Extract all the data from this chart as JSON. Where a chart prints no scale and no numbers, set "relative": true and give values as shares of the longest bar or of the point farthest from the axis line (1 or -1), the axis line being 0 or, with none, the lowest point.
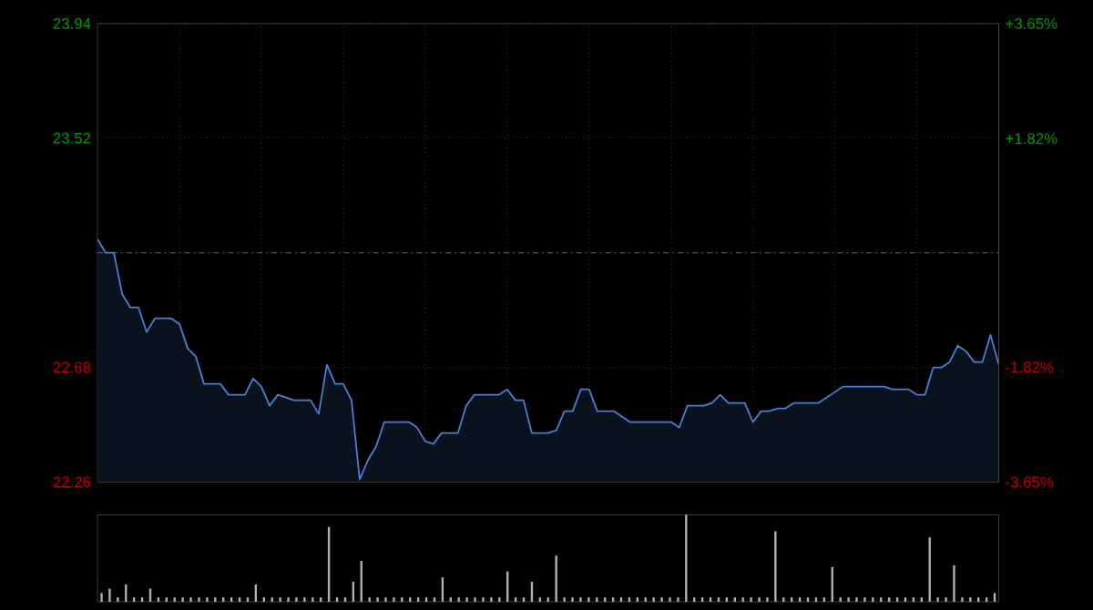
{
  "chart_data": [
    {
      "type": "area",
      "color": "#4a7fd4",
      "categories": [
        null,
        null,
        null,
        null,
        null,
        null,
        null,
        null,
        null,
        null,
        null,
        null,
        null,
        null,
        null,
        null,
        null,
        null,
        null,
        null,
        null,
        null,
        null,
        null,
        null,
        null,
        null,
        null,
        null,
        null,
        null,
        null,
        null,
        null,
        null,
        null,
        null,
        null,
        null,
        null,
        null,
        null,
        null,
        null,
        null,
        null,
        null,
        null,
        null,
        null,
        null,
        null,
        null,
        null,
        null,
        null,
        null,
        null,
        null,
        null,
        null,
        null,
        null,
        null,
        null,
        null,
        null,
        null,
        null,
        null,
        null,
        null,
        null,
        null,
        null,
        null,
        null,
        null,
        null,
        null,
        null,
        null,
        null,
        null,
        null,
        null,
        null,
        null,
        null,
        null,
        null,
        null,
        null,
        null,
        null,
        null,
        null,
        null,
        null,
        null,
        null,
        null,
        null,
        null,
        null,
        null,
        null,
        null,
        null,
        null,
        null
      ],
      "values": [
        23.15,
        23.1,
        23.1,
        22.95,
        22.9,
        22.9,
        22.81,
        22.86,
        22.86,
        22.86,
        22.84,
        22.75,
        22.72,
        22.62,
        22.62,
        22.62,
        22.58,
        22.58,
        22.58,
        22.64,
        22.61,
        22.54,
        22.58,
        22.57,
        22.56,
        22.56,
        22.56,
        22.51,
        22.69,
        22.62,
        22.62,
        22.56,
        22.27,
        22.34,
        22.39,
        22.48,
        22.48,
        22.48,
        22.48,
        22.46,
        22.41,
        22.4,
        22.44,
        22.44,
        22.44,
        22.54,
        22.58,
        22.58,
        22.58,
        22.58,
        22.6,
        22.56,
        22.56,
        22.44,
        22.44,
        22.44,
        22.45,
        22.52,
        22.52,
        22.6,
        22.6,
        22.52,
        22.52,
        22.52,
        22.5,
        22.48,
        22.48,
        22.48,
        22.48,
        22.48,
        22.48,
        22.46,
        22.54,
        22.54,
        22.54,
        22.55,
        22.58,
        22.55,
        22.55,
        22.55,
        22.48,
        22.52,
        22.52,
        22.53,
        22.53,
        22.55,
        22.55,
        22.55,
        22.55,
        22.57,
        22.59,
        22.61,
        22.61,
        22.61,
        22.61,
        22.61,
        22.61,
        22.6,
        22.6,
        22.6,
        22.58,
        22.58,
        22.68,
        22.68,
        22.7,
        22.76,
        22.74,
        22.7,
        22.7,
        22.8,
        22.69
      ],
      "ylim": [
        22.26,
        23.94
      ],
      "yticks": [
        22.26,
        22.68,
        23.52,
        23.94
      ],
      "y2lim": [
        -3.65,
        3.65
      ],
      "y2ticks": [
        {
          "value": -3.65,
          "label": "-3.65%"
        },
        {
          "value": -1.82,
          "label": "-1.82%"
        },
        {
          "value": 1.82,
          "label": "+1.82%"
        },
        {
          "value": 3.65,
          "label": "+3.65%"
        }
      ],
      "ref_lines": [
        {
          "axis": "y",
          "value": 23.1,
          "color": "#888888",
          "line_style": "dashed"
        }
      ],
      "grid": true
    },
    {
      "type": "bar",
      "relative": true,
      "color": "#b0b0b0",
      "categories": [
        null,
        null,
        null,
        null,
        null,
        null,
        null,
        null,
        null,
        null,
        null,
        null,
        null,
        null,
        null,
        null,
        null,
        null,
        null,
        null,
        null,
        null,
        null,
        null,
        null,
        null,
        null,
        null,
        null,
        null,
        null,
        null,
        null,
        null,
        null,
        null,
        null,
        null,
        null,
        null,
        null,
        null,
        null,
        null,
        null,
        null,
        null,
        null,
        null,
        null,
        null,
        null,
        null,
        null,
        null,
        null,
        null,
        null,
        null,
        null,
        null,
        null,
        null,
        null,
        null,
        null,
        null,
        null,
        null,
        null,
        null,
        null,
        null,
        null,
        null,
        null,
        null,
        null,
        null,
        null,
        null,
        null,
        null,
        null,
        null,
        null,
        null,
        null,
        null,
        null,
        null,
        null,
        null,
        null,
        null,
        null,
        null,
        null,
        null,
        null,
        null,
        null,
        null,
        null,
        null,
        null,
        null,
        null,
        null,
        null,
        null
      ],
      "values": [
        0.1,
        0.15,
        0.05,
        0.2,
        0.05,
        0.05,
        0.15,
        0.05,
        0.05,
        0.05,
        0.05,
        0.05,
        0.05,
        0.05,
        0.05,
        0.05,
        0.05,
        0.05,
        0.05,
        0.2,
        0.05,
        0.05,
        0.05,
        0.05,
        0.05,
        0.05,
        0.05,
        0.05,
        0.86,
        0.05,
        0.05,
        0.23,
        0.47,
        0.05,
        0.05,
        0.05,
        0.05,
        0.05,
        0.05,
        0.05,
        0.05,
        0.05,
        0.28,
        0.05,
        0.05,
        0.05,
        0.05,
        0.05,
        0.05,
        0.05,
        0.35,
        0.05,
        0.05,
        0.23,
        0.05,
        0.05,
        0.53,
        0.05,
        0.05,
        0.05,
        0.05,
        0.05,
        0.05,
        0.05,
        0.05,
        0.05,
        0.05,
        0.05,
        0.05,
        0.05,
        0.05,
        0.05,
        1.0,
        0.05,
        0.05,
        0.05,
        0.05,
        0.05,
        0.05,
        0.05,
        0.05,
        0.05,
        0.05,
        0.81,
        0.05,
        0.05,
        0.05,
        0.05,
        0.05,
        0.05,
        0.4,
        0.05,
        0.05,
        0.05,
        0.05,
        0.05,
        0.05,
        0.05,
        0.05,
        0.05,
        0.05,
        0.05,
        0.74,
        0.05,
        0.05,
        0.42,
        0.05,
        0.05,
        0.05,
        0.05,
        0.1
      ]
    }
  ]
}
